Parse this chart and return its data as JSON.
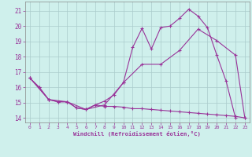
{
  "xlabel": "Windchill (Refroidissement éolien,°C)",
  "bg_color": "#cff0ec",
  "grid_color": "#aacccc",
  "line_color": "#993399",
  "xlim": [
    -0.5,
    23.5
  ],
  "ylim": [
    13.7,
    21.6
  ],
  "xticks": [
    0,
    1,
    2,
    3,
    4,
    5,
    6,
    7,
    8,
    9,
    10,
    11,
    12,
    13,
    14,
    15,
    16,
    17,
    18,
    19,
    20,
    21,
    22,
    23
  ],
  "yticks": [
    14,
    15,
    16,
    17,
    18,
    19,
    20,
    21
  ],
  "line1_x": [
    0,
    1,
    2,
    3,
    4,
    5,
    6,
    7,
    8,
    9,
    10,
    11,
    12,
    13,
    14,
    15,
    16,
    17,
    18,
    19,
    20,
    21,
    22
  ],
  "line1_y": [
    16.6,
    16.0,
    15.2,
    15.05,
    15.05,
    14.65,
    14.55,
    14.85,
    15.1,
    15.5,
    16.3,
    18.6,
    19.85,
    18.5,
    19.9,
    20.0,
    20.5,
    21.1,
    20.65,
    19.9,
    18.1,
    16.4,
    14.0
  ],
  "line2_x": [
    0,
    2,
    4,
    6,
    8,
    10,
    12,
    14,
    16,
    18,
    20,
    22,
    23
  ],
  "line2_y": [
    16.6,
    15.2,
    15.05,
    14.55,
    14.85,
    16.3,
    17.5,
    17.5,
    18.4,
    19.8,
    19.05,
    18.1,
    14.0
  ],
  "line3_x": [
    0,
    1,
    2,
    3,
    4,
    5,
    6,
    7,
    8,
    9,
    10,
    11,
    12,
    13,
    14,
    15,
    16,
    17,
    18,
    19,
    20,
    21,
    22,
    23
  ],
  "line3_y": [
    16.6,
    16.0,
    15.2,
    15.05,
    15.05,
    14.65,
    14.55,
    14.85,
    14.75,
    14.75,
    14.7,
    14.6,
    14.6,
    14.55,
    14.5,
    14.45,
    14.4,
    14.35,
    14.3,
    14.25,
    14.2,
    14.15,
    14.1,
    14.0
  ]
}
